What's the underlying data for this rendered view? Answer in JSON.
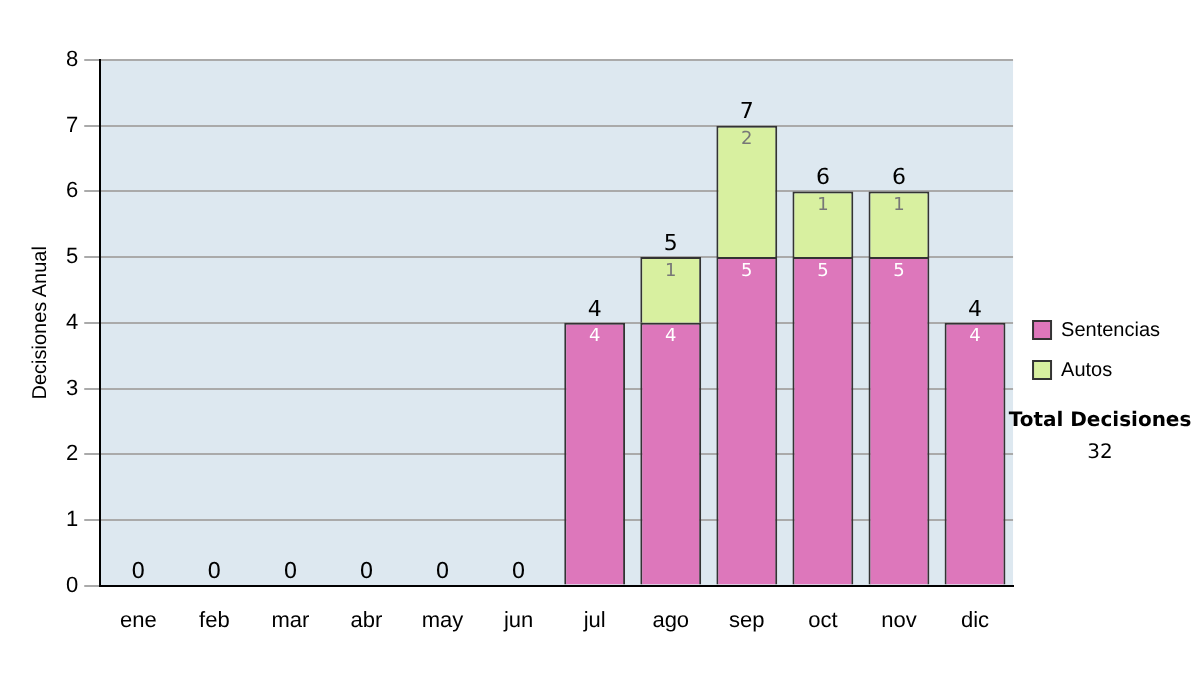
{
  "chart_data": {
    "type": "bar",
    "stacked": true,
    "ylabel": "Decisiones Anual",
    "categories": [
      "ene",
      "feb",
      "mar",
      "abr",
      "may",
      "jun",
      "jul",
      "ago",
      "sep",
      "oct",
      "nov",
      "dic"
    ],
    "series": [
      {
        "name": "Sentencias",
        "color": "#dd77bb",
        "values": [
          0,
          0,
          0,
          0,
          0,
          0,
          4,
          4,
          5,
          5,
          5,
          4
        ],
        "value_labels": [
          null,
          null,
          null,
          null,
          null,
          null,
          "4",
          "4",
          "5",
          "5",
          "5",
          "4"
        ]
      },
      {
        "name": "Autos",
        "color": "#d8f0a0",
        "values": [
          0,
          0,
          0,
          0,
          0,
          0,
          0,
          1,
          2,
          1,
          1,
          0
        ],
        "value_labels": [
          null,
          null,
          null,
          null,
          null,
          null,
          null,
          "1",
          "2",
          "1",
          "1",
          null
        ]
      }
    ],
    "totals": [
      "0",
      "0",
      "0",
      "0",
      "0",
      "0",
      "4",
      "5",
      "7",
      "6",
      "6",
      "4"
    ],
    "ylim": [
      0,
      8
    ],
    "yticks": [
      0,
      1,
      2,
      3,
      4,
      5,
      6,
      7,
      8
    ],
    "grid": "y",
    "legend": "right",
    "annotations": [
      "Total Decisiones",
      "32"
    ]
  }
}
